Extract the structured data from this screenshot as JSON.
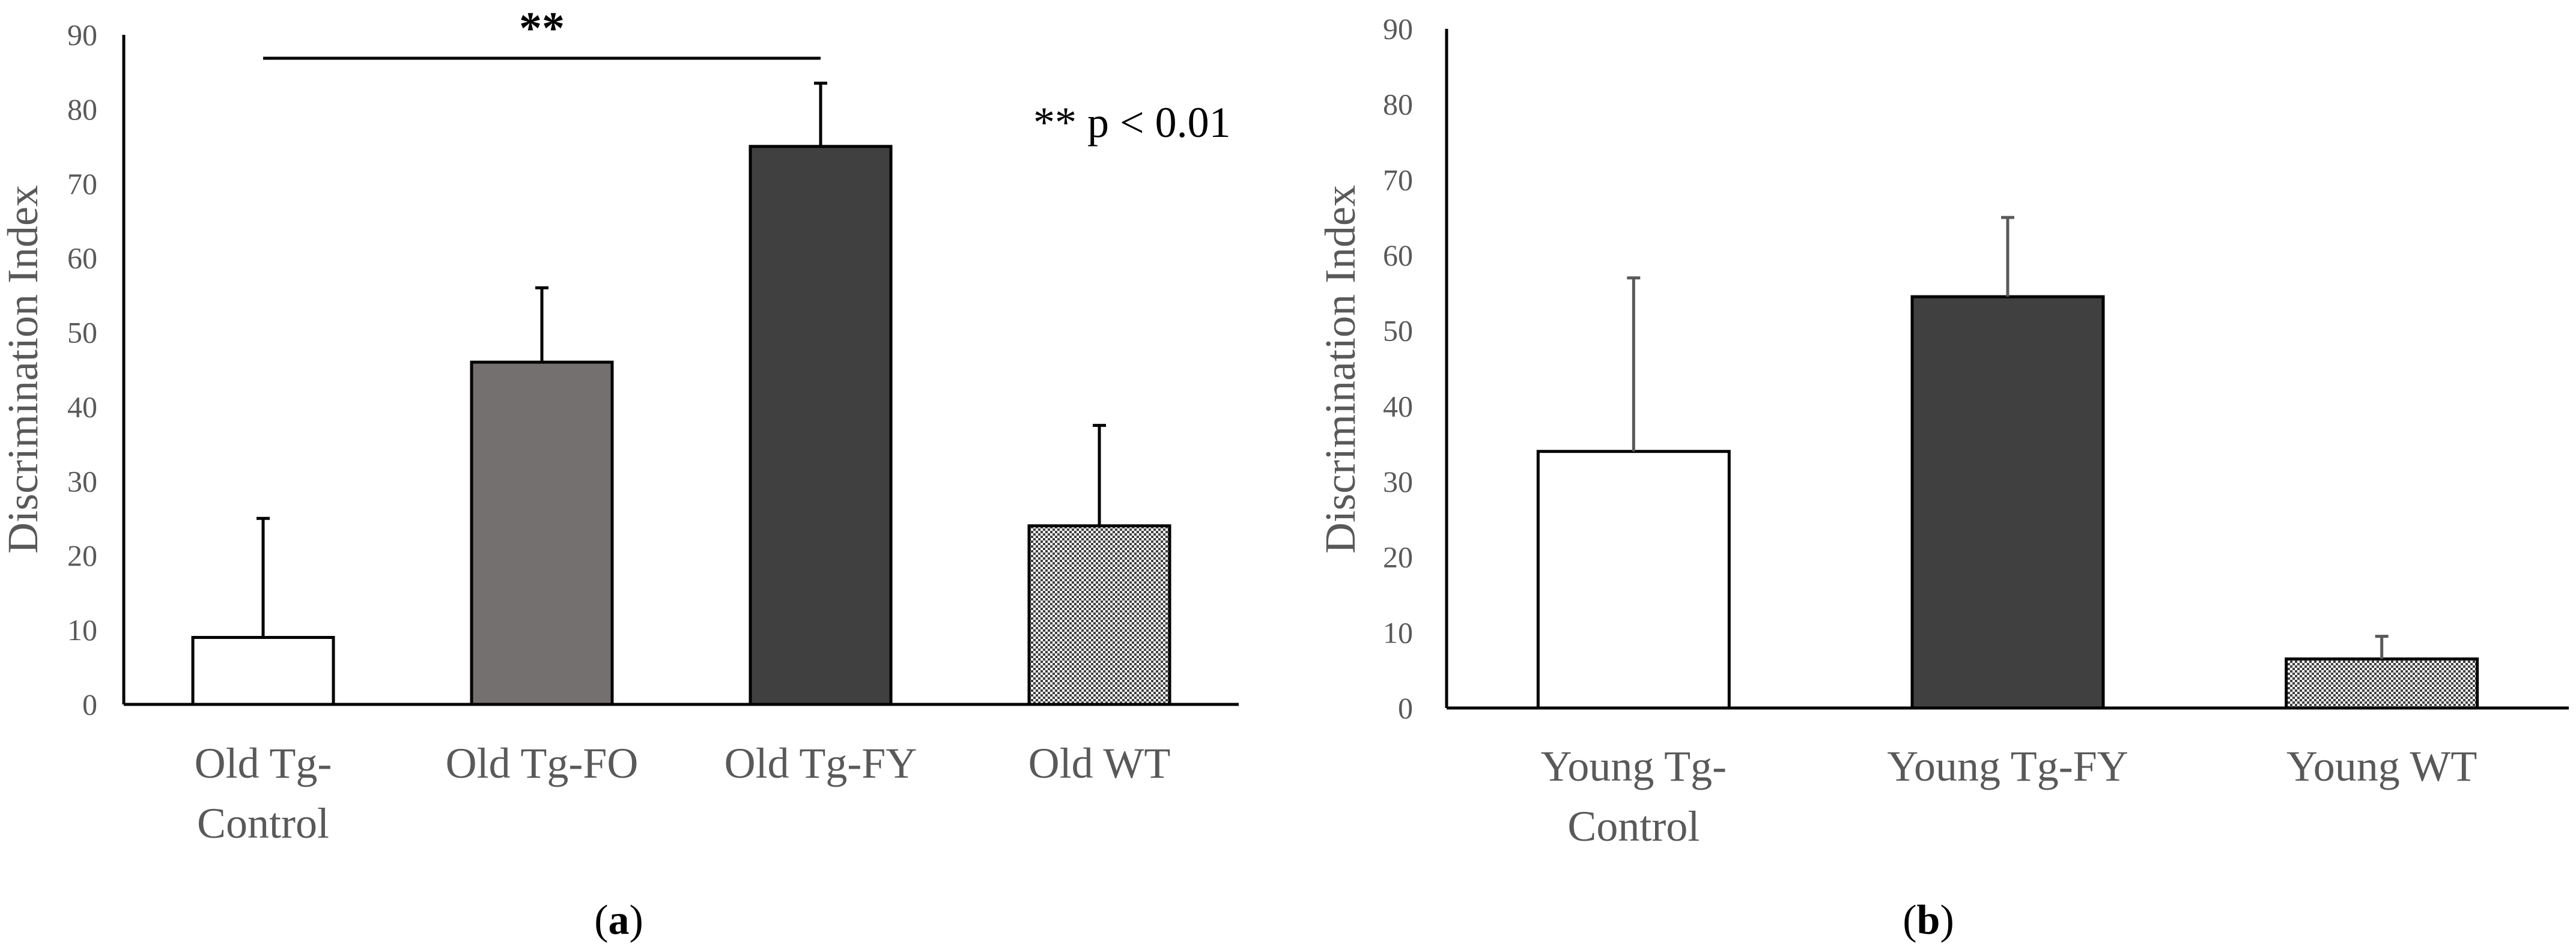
{
  "chart_data": [
    {
      "panel": "a",
      "type": "bar",
      "ylabel": "Discrimination Index",
      "ylim": [
        0,
        90
      ],
      "yticks": [
        0,
        10,
        20,
        30,
        40,
        50,
        60,
        70,
        80,
        90
      ],
      "categories": [
        "Old Tg-\nControl",
        "Old Tg-FO",
        "Old Tg-FY",
        "Old WT"
      ],
      "values": [
        9,
        46,
        75,
        24
      ],
      "error_up": [
        25,
        56,
        83.5,
        37.5
      ],
      "fills": [
        "white",
        "medium-gray",
        "dark-gray",
        "checker"
      ],
      "significance": {
        "from": 0,
        "to": 2,
        "stars": "**"
      },
      "annotation": "** p < 0.01",
      "caption_open": "(",
      "caption_letter": "a",
      "caption_close": ")"
    },
    {
      "panel": "b",
      "type": "bar",
      "ylabel": "Discrimination Index",
      "ylim": [
        0,
        90
      ],
      "yticks": [
        0,
        10,
        20,
        30,
        40,
        50,
        60,
        70,
        80,
        90
      ],
      "categories": [
        "Young Tg-\nControl",
        "Young Tg-FY",
        "Young WT"
      ],
      "values": [
        34,
        54.5,
        6.5
      ],
      "error_up": [
        57,
        65,
        9.5
      ],
      "fills": [
        "white",
        "dark-gray",
        "checker"
      ],
      "caption_open": "(",
      "caption_letter": "b",
      "caption_close": ")"
    }
  ],
  "colors": {
    "axis": "#000000",
    "text": "#595959",
    "white": "#ffffff",
    "medium-gray": "#757070",
    "dark-gray": "#404040",
    "checker_a": "#404040",
    "checker_b": "#ffffff",
    "error_a": "#000000",
    "error_b": "#595959"
  }
}
